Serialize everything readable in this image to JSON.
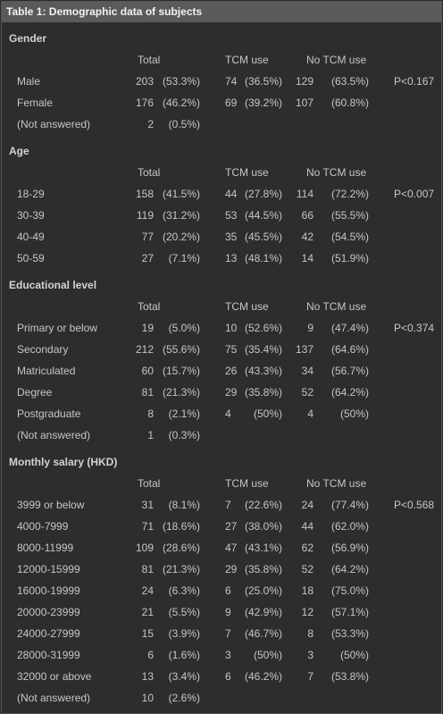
{
  "title": "Table 1: Demographic data of subjects",
  "headers": {
    "total": "Total",
    "tcm": "TCM use",
    "no_tcm": "No TCM use"
  },
  "sections": [
    {
      "name": "Gender",
      "rows": [
        {
          "label": "Male",
          "total_n": "203",
          "total_p": "(53.3%)",
          "tcm_n": "74",
          "tcm_p": "(36.5%)",
          "no_n": "129",
          "no_p": "(63.5%)",
          "p": "P<0.167"
        },
        {
          "label": "Female",
          "total_n": "176",
          "total_p": "(46.2%)",
          "tcm_n": "69",
          "tcm_p": "(39.2%)",
          "no_n": "107",
          "no_p": "(60.8%)",
          "p": ""
        },
        {
          "label": "(Not answered)",
          "total_n": "2",
          "total_p": "(0.5%)",
          "tcm_n": "",
          "tcm_p": "",
          "no_n": "",
          "no_p": "",
          "p": ""
        }
      ]
    },
    {
      "name": "Age",
      "rows": [
        {
          "label": "18-29",
          "total_n": "158",
          "total_p": "(41.5%)",
          "tcm_n": "44",
          "tcm_p": "(27.8%)",
          "no_n": "114",
          "no_p": "(72.2%)",
          "p": "P<0.007"
        },
        {
          "label": "30-39",
          "total_n": "119",
          "total_p": "(31.2%)",
          "tcm_n": "53",
          "tcm_p": "(44.5%)",
          "no_n": "66",
          "no_p": "(55.5%)",
          "p": ""
        },
        {
          "label": "40-49",
          "total_n": "77",
          "total_p": "(20.2%)",
          "tcm_n": "35",
          "tcm_p": "(45.5%)",
          "no_n": "42",
          "no_p": "(54.5%)",
          "p": ""
        },
        {
          "label": "50-59",
          "total_n": "27",
          "total_p": "(7.1%)",
          "tcm_n": "13",
          "tcm_p": "(48.1%)",
          "no_n": "14",
          "no_p": "(51.9%)",
          "p": ""
        }
      ]
    },
    {
      "name": "Educational level",
      "rows": [
        {
          "label": "Primary or below",
          "total_n": "19",
          "total_p": "(5.0%)",
          "tcm_n": "10",
          "tcm_p": "(52.6%)",
          "no_n": "9",
          "no_p": "(47.4%)",
          "p": "P<0.374"
        },
        {
          "label": "Secondary",
          "total_n": "212",
          "total_p": "(55.6%)",
          "tcm_n": "75",
          "tcm_p": "(35.4%)",
          "no_n": "137",
          "no_p": "(64.6%)",
          "p": ""
        },
        {
          "label": "Matriculated",
          "total_n": "60",
          "total_p": "(15.7%)",
          "tcm_n": "26",
          "tcm_p": "(43.3%)",
          "no_n": "34",
          "no_p": "(56.7%)",
          "p": ""
        },
        {
          "label": "Degree",
          "total_n": "81",
          "total_p": "(21.3%)",
          "tcm_n": "29",
          "tcm_p": "(35.8%)",
          "no_n": "52",
          "no_p": "(64.2%)",
          "p": ""
        },
        {
          "label": "Postgraduate",
          "total_n": "8",
          "total_p": "(2.1%)",
          "tcm_n": "4",
          "tcm_p": "(50%)",
          "no_n": "4",
          "no_p": "(50%)",
          "p": ""
        },
        {
          "label": "(Not answered)",
          "total_n": "1",
          "total_p": "(0.3%)",
          "tcm_n": "",
          "tcm_p": "",
          "no_n": "",
          "no_p": "",
          "p": ""
        }
      ]
    },
    {
      "name": "Monthly salary (HKD)",
      "rows": [
        {
          "label": "3999 or below",
          "total_n": "31",
          "total_p": "(8.1%)",
          "tcm_n": "7",
          "tcm_p": "(22.6%)",
          "no_n": "24",
          "no_p": "(77.4%)",
          "p": "P<0.568"
        },
        {
          "label": "4000-7999",
          "total_n": "71",
          "total_p": "(18.6%)",
          "tcm_n": "27",
          "tcm_p": "(38.0%)",
          "no_n": "44",
          "no_p": "(62.0%)",
          "p": ""
        },
        {
          "label": "8000-11999",
          "total_n": "109",
          "total_p": "(28.6%)",
          "tcm_n": "47",
          "tcm_p": "(43.1%)",
          "no_n": "62",
          "no_p": "(56.9%)",
          "p": ""
        },
        {
          "label": "12000-15999",
          "total_n": "81",
          "total_p": "(21.3%)",
          "tcm_n": "29",
          "tcm_p": "(35.8%)",
          "no_n": "52",
          "no_p": "(64.2%)",
          "p": ""
        },
        {
          "label": "16000-19999",
          "total_n": "24",
          "total_p": "(6.3%)",
          "tcm_n": "6",
          "tcm_p": "(25.0%)",
          "no_n": "18",
          "no_p": "(75.0%)",
          "p": ""
        },
        {
          "label": "20000-23999",
          "total_n": "21",
          "total_p": "(5.5%)",
          "tcm_n": "9",
          "tcm_p": "(42.9%)",
          "no_n": "12",
          "no_p": "(57.1%)",
          "p": ""
        },
        {
          "label": "24000-27999",
          "total_n": "15",
          "total_p": "(3.9%)",
          "tcm_n": "7",
          "tcm_p": "(46.7%)",
          "no_n": "8",
          "no_p": "(53.3%)",
          "p": ""
        },
        {
          "label": "28000-31999",
          "total_n": "6",
          "total_p": "(1.6%)",
          "tcm_n": "3",
          "tcm_p": "(50%)",
          "no_n": "3",
          "no_p": "(50%)",
          "p": ""
        },
        {
          "label": "32000 or above",
          "total_n": "13",
          "total_p": "(3.4%)",
          "tcm_n": "6",
          "tcm_p": "(46.2%)",
          "no_n": "7",
          "no_p": "(53.8%)",
          "p": ""
        },
        {
          "label": "(Not answered)",
          "total_n": "10",
          "total_p": "(2.6%)",
          "tcm_n": "",
          "tcm_p": "",
          "no_n": "",
          "no_p": "",
          "p": ""
        }
      ]
    }
  ]
}
